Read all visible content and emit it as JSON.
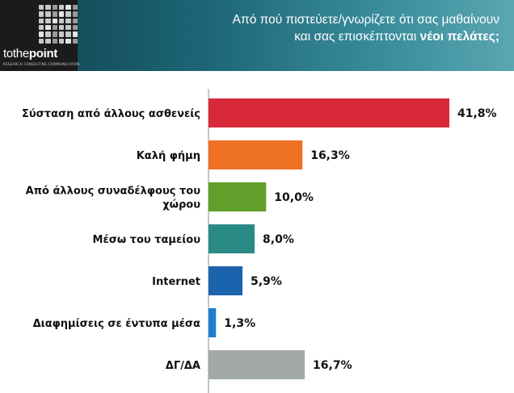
{
  "header": {
    "logo_text_light": "tothe",
    "logo_text_bold": "point",
    "logo_tagline": "RESEARCH CONSULTING COMMUNICATION",
    "question_line1": "Από πού πιστεύετε/γνωρίζετε ότι σας μαθαίνουν",
    "question_line2": "και σας επισκέπτονται",
    "question_bold": "νέοι πελάτες;"
  },
  "chart_data": {
    "type": "bar",
    "orientation": "horizontal",
    "categories": [
      "Σύσταση από άλλους ασθενείς",
      "Καλή φήμη",
      "Από άλλους συναδέλφους του χώρου",
      "Μέσω του ταμείου",
      "Internet",
      "Διαφημίσεις σε έντυπα μέσα",
      "ΔΓ/ΔΑ"
    ],
    "category_lines": [
      [
        "Σύσταση από άλλους ασθενείς"
      ],
      [
        "Καλή φήμη"
      ],
      [
        "Από άλλους συναδέλφους του",
        "χώρου"
      ],
      [
        "Μέσω του ταμείου"
      ],
      [
        "Internet"
      ],
      [
        "Διαφημίσεις σε έντυπα μέσα"
      ],
      [
        "ΔΓ/ΔΑ"
      ]
    ],
    "values": [
      41.8,
      16.3,
      10.0,
      8.0,
      5.9,
      1.3,
      16.7
    ],
    "value_labels": [
      "41,8%",
      "16,3%",
      "10,0%",
      "8,0%",
      "5,9%",
      "1,3%",
      "16,7%"
    ],
    "colors": [
      "#d8283a",
      "#ee7124",
      "#5f9f2a",
      "#2a8b86",
      "#1c63ad",
      "#1b7fd0",
      "#a3aaa6"
    ],
    "xlim": [
      0,
      41.8
    ],
    "title": "",
    "xlabel": "",
    "ylabel": ""
  }
}
